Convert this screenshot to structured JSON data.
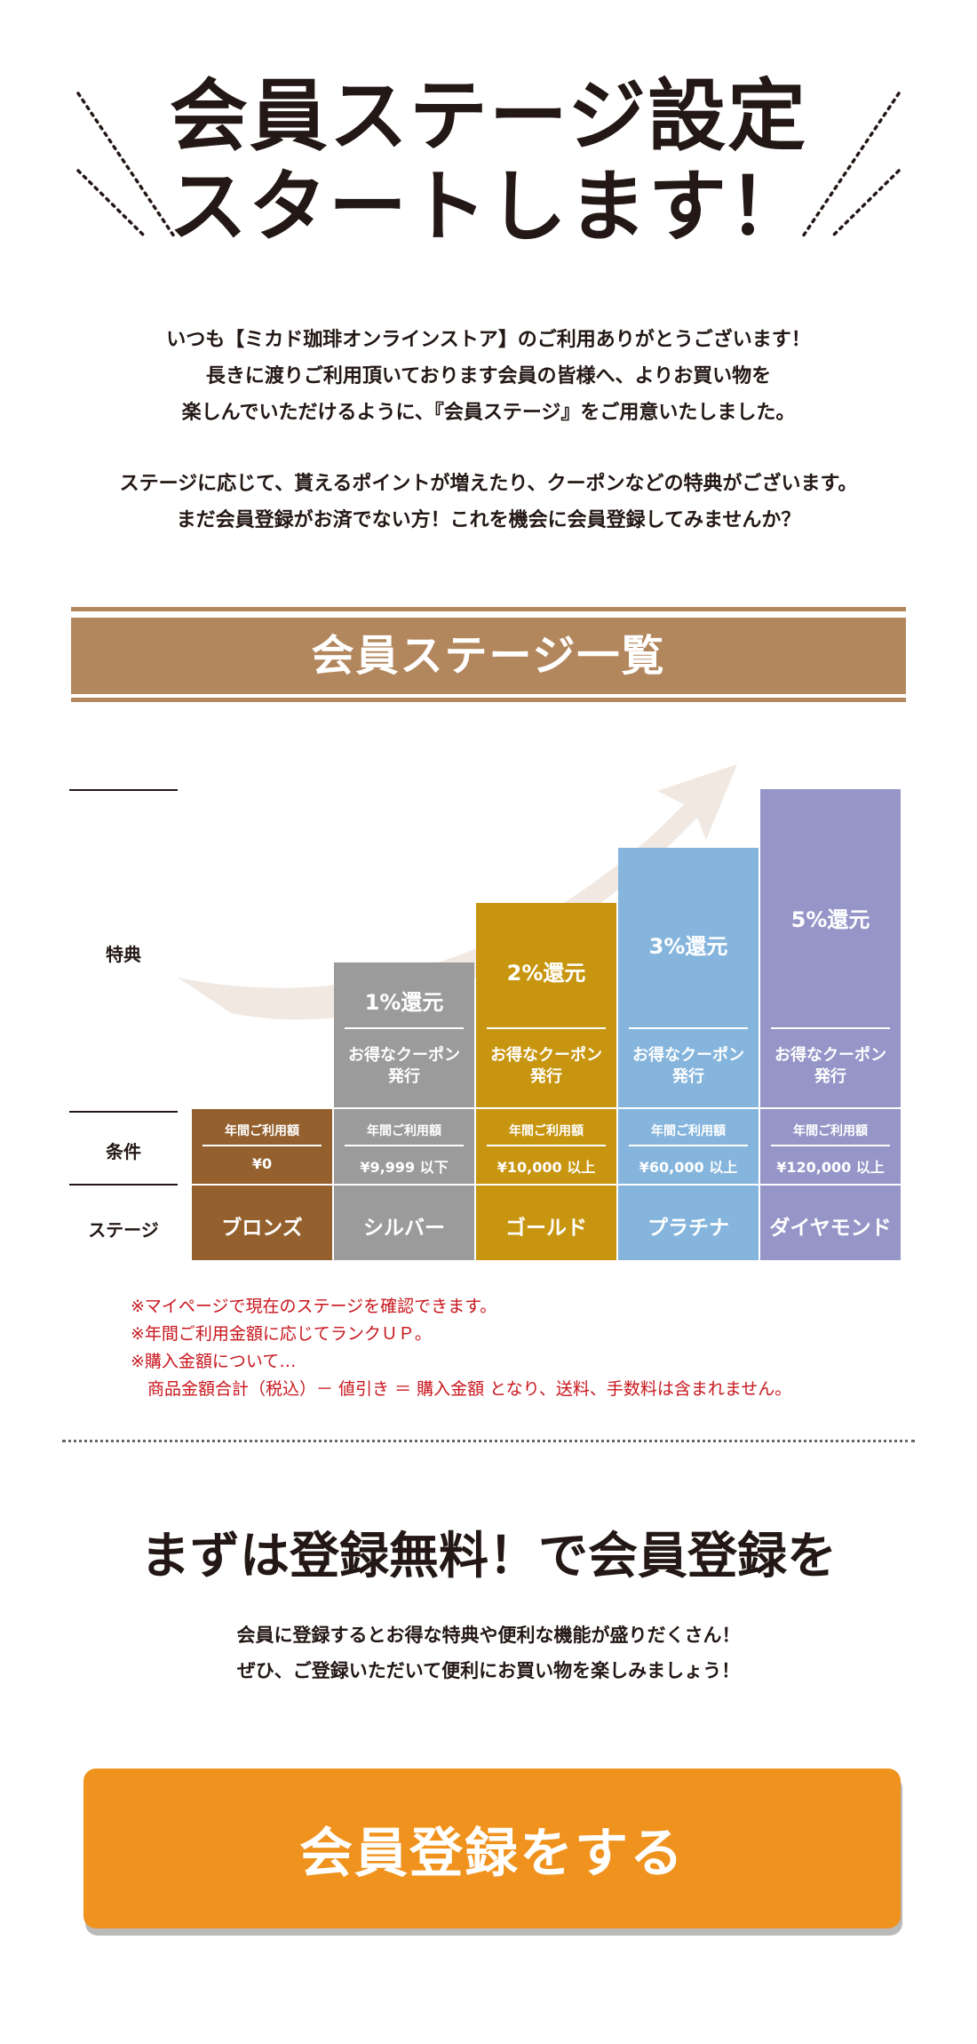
{
  "hero": {
    "title_line1": "会員ステージ設定",
    "title_line2": "スタートします！"
  },
  "intro": {
    "lines": [
      "いつも【ミカド珈琲オンラインストア】のご利用ありがとうございます！",
      "長きに渡りご利用頂いております会員の皆様へ、よりお買い物を",
      "楽しんでいただけるように、『会員ステージ』をご用意いたしました。",
      "ステージに応じて、貰えるポイントが増えたり、クーポンなどの特典がございます。",
      "まだ会員登録がお済でない方！これを機会に会員登録してみませんか？"
    ]
  },
  "stage_list": {
    "heading": "会員ステージ一覧",
    "row_labels": {
      "benefit": "特典",
      "condition": "条件",
      "stage": "ステージ"
    },
    "condition_label": "年間ご利用額",
    "stages": [
      {
        "name": "ブロンズ",
        "amount": "¥0",
        "reward": "",
        "coupon": "",
        "color": "#94602e"
      },
      {
        "name": "シルバー",
        "amount": "¥9,999 以下",
        "reward": "1%還元",
        "coupon": "お得なクーポン\n発行",
        "color": "#9b9b9b"
      },
      {
        "name": "ゴールド",
        "amount": "¥10,000 以上",
        "reward": "2%還元",
        "coupon": "お得なクーポン\n発行",
        "color": "#c7950f"
      },
      {
        "name": "プラチナ",
        "amount": "¥60,000 以上",
        "reward": "3%還元",
        "coupon": "お得なクーポン\n発行",
        "color": "#85b5dc"
      },
      {
        "name": "ダイヤモンド",
        "amount": "¥120,000 以上",
        "reward": "5%還元",
        "coupon": "お得なクーポン\n発行",
        "color": "#9595c8"
      }
    ],
    "colors": {
      "banner": "#b3875e",
      "arrow": "#f1e8e1"
    }
  },
  "notes": [
    "※マイページで現在のステージを確認できます。",
    "※年間ご利用金額に応じてランクＵＰ。",
    "※購入金額について…",
    "　商品金額合計（税込）－ 値引き ＝ 購入金額 となり、送料、手数料は含まれません。"
  ],
  "register": {
    "title": "まずは登録無料！で会員登録を",
    "desc_lines": [
      "会員に登録するとお得な特典や便利な機能が盛りだくさん！",
      "ぜひ、ご登録いただいて便利にお買い物を楽しみましょう！"
    ],
    "button_label": "会員登録をする",
    "button_color": "#f0931e"
  }
}
